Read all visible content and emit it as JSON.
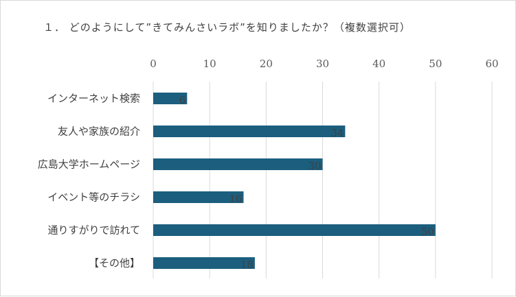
{
  "chart_data": {
    "type": "bar",
    "orientation": "horizontal",
    "title": "１． どのようにして”きてみんさいラボ”を知りましたか？（複数選択可）",
    "categories": [
      "インターネット検索",
      "友人や家族の紹介",
      "広島大学ホームページ",
      "イベント等のチラシ",
      "通りすがりで訪れて",
      "【その他】"
    ],
    "values": [
      6,
      34,
      30,
      16,
      50,
      18
    ],
    "xlim": [
      0,
      60
    ],
    "xticks": [
      0,
      10,
      20,
      30,
      40,
      50,
      60
    ],
    "grid": true,
    "legend": "none",
    "bar_color": "#1b5e7e",
    "grid_color": "#d9d9d9"
  }
}
